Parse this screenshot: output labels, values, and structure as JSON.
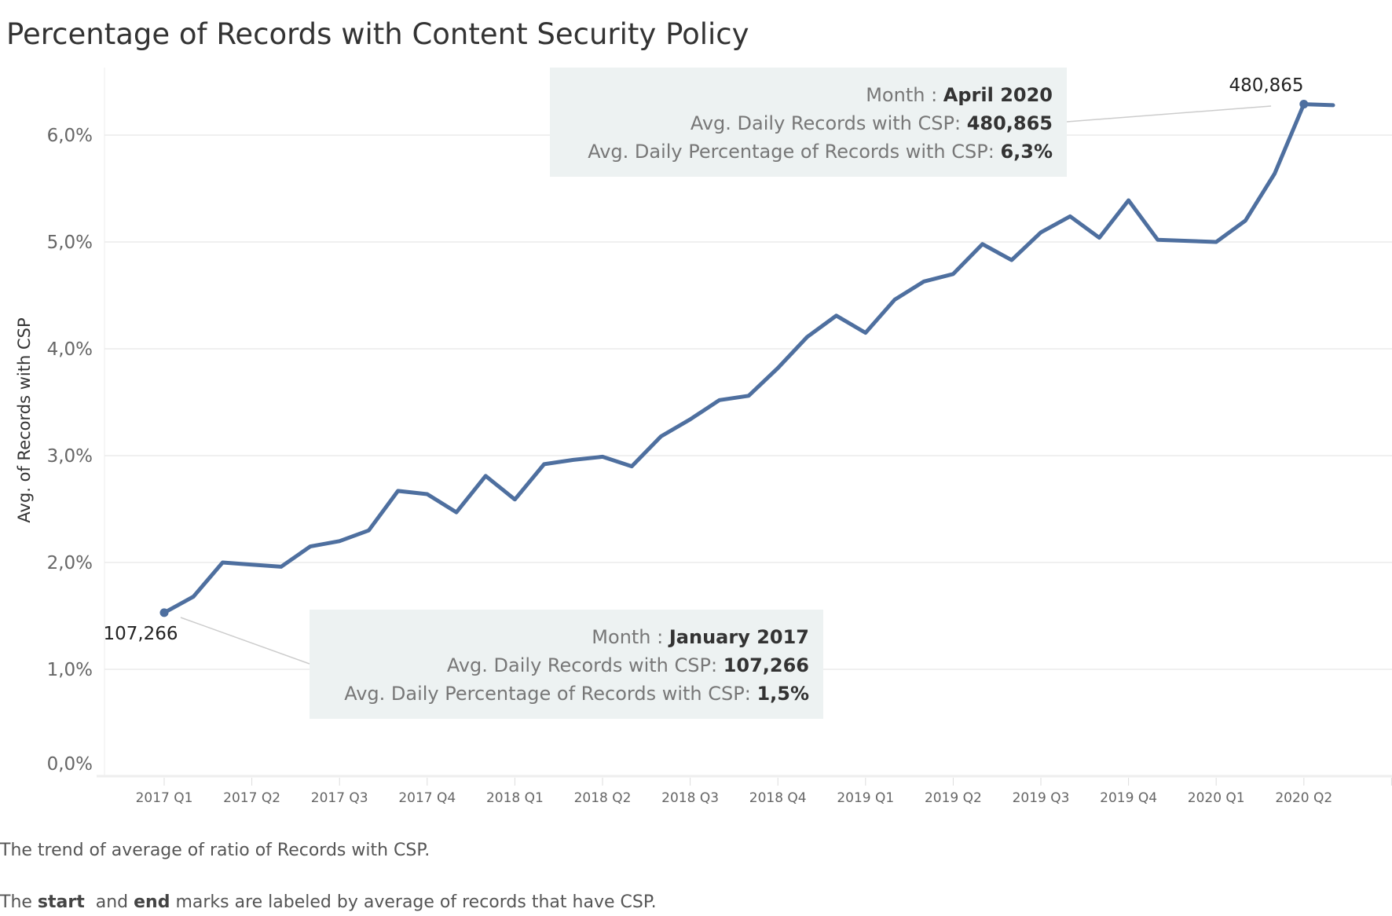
{
  "chart_data": {
    "type": "line",
    "title": "Percentage of Records with Content Security Policy",
    "ylabel": "Avg. of Records with CSP",
    "xlabel": "",
    "ylim": [
      0,
      6.5
    ],
    "y_unit": "%",
    "yticks": [
      "0,0%",
      "1,0%",
      "2,0%",
      "3,0%",
      "4,0%",
      "5,0%",
      "6,0%"
    ],
    "ytick_values": [
      0,
      1,
      2,
      3,
      4,
      5,
      6
    ],
    "xticks": [
      "2017 Q1",
      "2017 Q2",
      "2017 Q3",
      "2017 Q4",
      "2018 Q1",
      "2018 Q2",
      "2018 Q3",
      "2018 Q4",
      "2019 Q1",
      "2019 Q2",
      "2019 Q3",
      "2019 Q4",
      "2020 Q1",
      "2020 Q2"
    ],
    "grid": true,
    "line_color": "#4e6f9f",
    "x": [
      "2017-01",
      "2017-02",
      "2017-03",
      "2017-04",
      "2017-05",
      "2017-06",
      "2017-07",
      "2017-08",
      "2017-09",
      "2017-10",
      "2017-11",
      "2017-12",
      "2018-01",
      "2018-02",
      "2018-03",
      "2018-04",
      "2018-05",
      "2018-06",
      "2018-07",
      "2018-08",
      "2018-09",
      "2018-10",
      "2018-11",
      "2018-12",
      "2019-01",
      "2019-02",
      "2019-03",
      "2019-04",
      "2019-05",
      "2019-06",
      "2019-07",
      "2019-08",
      "2019-09",
      "2019-10",
      "2019-11",
      "2019-12",
      "2020-01",
      "2020-02",
      "2020-03",
      "2020-04",
      "2020-05"
    ],
    "values": [
      1.53,
      1.68,
      2.0,
      1.98,
      1.96,
      2.15,
      2.2,
      2.3,
      2.67,
      2.64,
      2.47,
      2.81,
      2.59,
      2.92,
      2.96,
      2.99,
      2.9,
      3.18,
      3.34,
      3.52,
      3.56,
      3.82,
      4.11,
      4.31,
      4.15,
      4.46,
      4.63,
      4.7,
      4.98,
      4.83,
      5.09,
      5.24,
      5.04,
      5.39,
      5.02,
      5.01,
      5.0,
      5.2,
      5.64,
      6.29,
      6.28
    ],
    "start_label": "107,266",
    "end_label": "480,865",
    "annotations": [
      {
        "month_label": "Month : ",
        "month": "April 2020",
        "records_label": "Avg. Daily Records with CSP: ",
        "records": "480,865",
        "pct_label": "Avg. Daily Percentage of Records with CSP: ",
        "pct": "6,3%"
      },
      {
        "month_label": "Month : ",
        "month": "January 2017",
        "records_label": "Avg. Daily Records with CSP: ",
        "records": "107,266",
        "pct_label": "Avg. Daily Percentage of Records with CSP: ",
        "pct": "1,5%"
      }
    ]
  },
  "caption": {
    "line1": "The trend of average of ratio of Records with CSP.",
    "line2_a": "The ",
    "line2_start": "start",
    "line2_b": "  and ",
    "line2_end": "end",
    "line2_c": " marks are labeled by average of records that have CSP."
  }
}
